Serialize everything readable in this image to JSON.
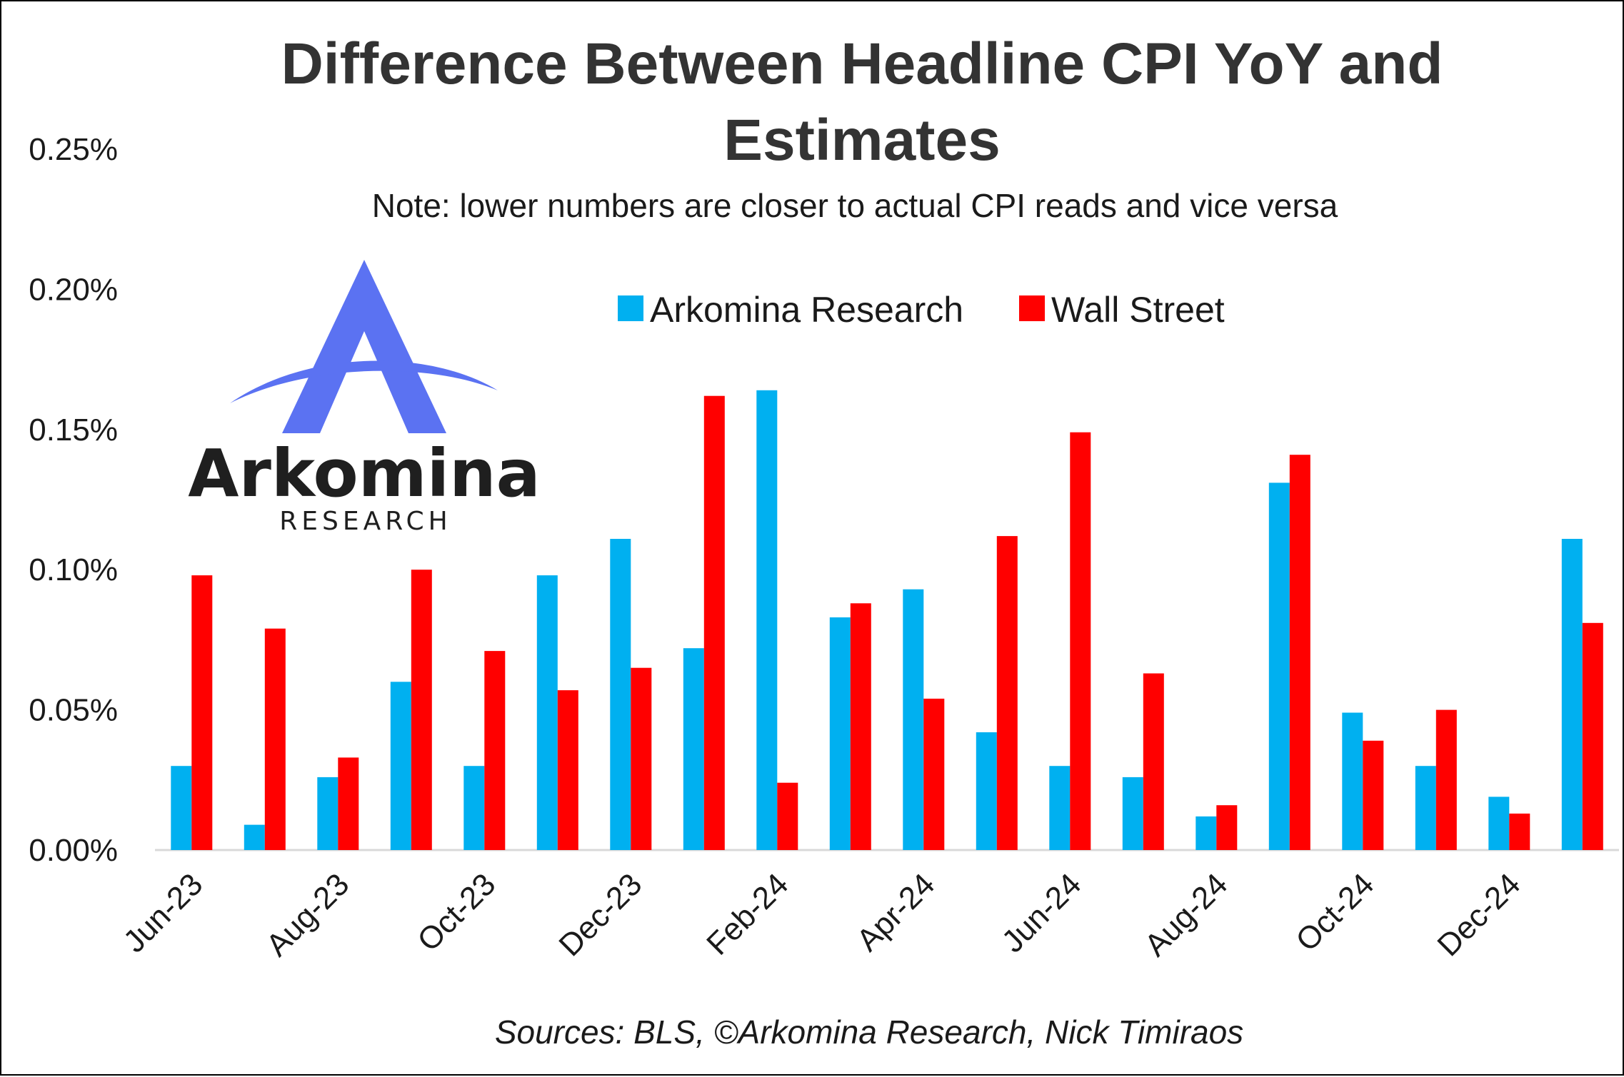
{
  "chart_data": {
    "type": "bar",
    "title_lines": [
      "Difference Between Headline CPI YoY and",
      "Estimates"
    ],
    "subtitle": "Note: lower numbers are closer to actual CPI reads and vice versa",
    "source": "Sources: BLS, ©Arkomina Research, Nick Timiraos",
    "categories": [
      "Jun-23",
      "Jul-23",
      "Aug-23",
      "Sep-23",
      "Oct-23",
      "Nov-23",
      "Dec-23",
      "Jan-24",
      "Feb-24",
      "Mar-24",
      "Apr-24",
      "May-24",
      "Jun-24",
      "Jul-24",
      "Aug-24",
      "Sep-24",
      "Oct-24",
      "Nov-24",
      "Dec-24",
      "Jan-25"
    ],
    "x_tick_labels": [
      "Jun-23",
      "Aug-23",
      "Oct-23",
      "Dec-23",
      "Feb-24",
      "Apr-24",
      "Jun-24",
      "Aug-24",
      "Oct-24",
      "Dec-24"
    ],
    "series": [
      {
        "name": "Arkomina Research",
        "color": "#00B0F0",
        "values": [
          0.03,
          0.009,
          0.026,
          0.06,
          0.03,
          0.098,
          0.111,
          0.072,
          0.164,
          0.083,
          0.093,
          0.042,
          0.03,
          0.026,
          0.012,
          0.131,
          0.049,
          0.03,
          0.019,
          0.111
        ]
      },
      {
        "name": "Wall Street",
        "color": "#FF0000",
        "values": [
          0.098,
          0.079,
          0.033,
          0.1,
          0.071,
          0.057,
          0.065,
          0.162,
          0.024,
          0.088,
          0.054,
          0.112,
          0.149,
          0.063,
          0.016,
          0.141,
          0.039,
          0.05,
          0.013,
          0.081
        ]
      }
    ],
    "y_ticks": [
      "0.00%",
      "0.05%",
      "0.10%",
      "0.15%",
      "0.20%",
      "0.25%"
    ],
    "ylim": [
      0,
      0.25
    ],
    "grid": false,
    "legend_position": "top-center"
  },
  "logo": {
    "name": "Arkomina",
    "subtitle": "RESEARCH",
    "colors": {
      "mark": "#5B72F2",
      "text": "#1f1f1f"
    }
  }
}
